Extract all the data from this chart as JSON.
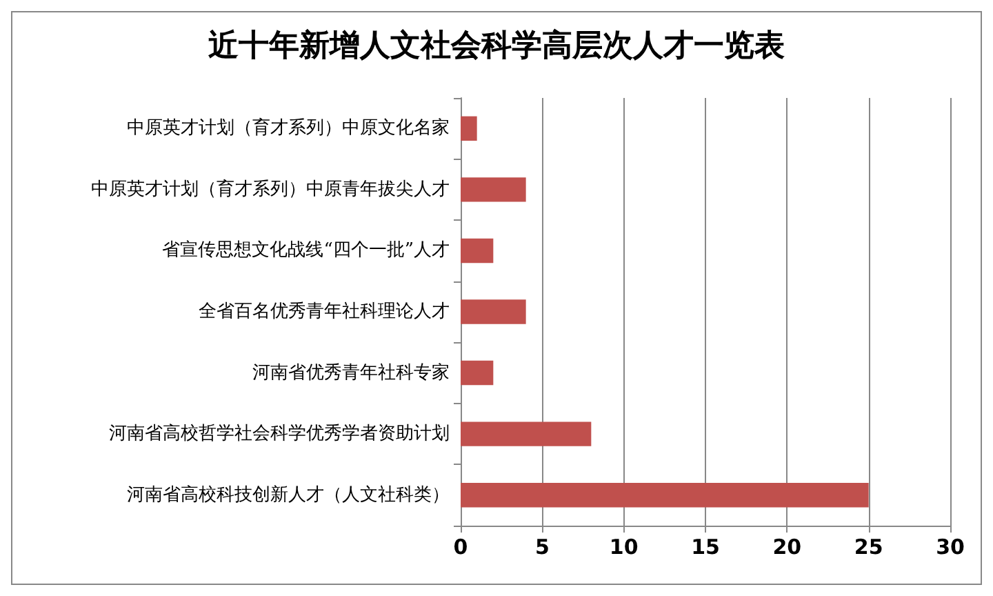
{
  "chart_data": {
    "type": "bar",
    "orientation": "horizontal",
    "title": "近十年新增人文社会科学高层次人才一览表",
    "categories": [
      "中原英才计划（育才系列）中原文化名家",
      "中原英才计划（育才系列）中原青年拔尖人才",
      "省宣传思想文化战线“四个一批”人才",
      "全省百名优秀青年社科理论人才",
      "河南省优秀青年社科专家",
      "河南省高校哲学社会科学优秀学者资助计划",
      "河南省高校科技创新人才（人文社科类）"
    ],
    "values": [
      1,
      4,
      2,
      4,
      2,
      8,
      25
    ],
    "color": "#c0504d",
    "xlim": [
      0,
      30
    ],
    "xticks": [
      0,
      5,
      10,
      15,
      20,
      25,
      30
    ],
    "grid": "x"
  }
}
